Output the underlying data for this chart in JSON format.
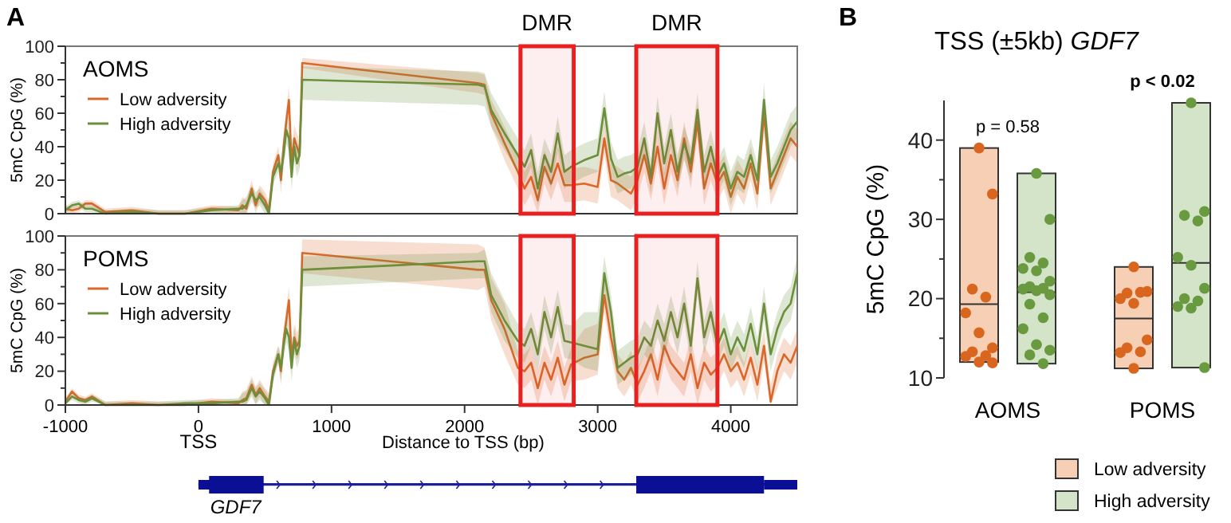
{
  "chart_data": [
    {
      "type": "line",
      "title": "AOMS",
      "ylabel": "5mC CpG (%)",
      "annotations": [
        "A"
      ],
      "legend": "top left",
      "tick_labels": "y",
      "xlim": [
        -1000,
        4500
      ],
      "ylim": [
        0,
        100
      ],
      "yticks": [
        0,
        {
          "value": 10,
          "label": null
        },
        20,
        {
          "value": 30,
          "label": null
        },
        40,
        {
          "value": 50,
          "label": null
        },
        60,
        {
          "value": 70,
          "label": null
        },
        80,
        {
          "value": 90,
          "label": null
        },
        100
      ],
      "bands": [
        {
          "axis": "x",
          "from": 2420,
          "to": 2820,
          "label": "DMR",
          "color": "#e8201f"
        },
        {
          "axis": "x",
          "from": 3290,
          "to": 3900,
          "label": "DMR",
          "color": "#e8201f"
        }
      ],
      "x": [
        -1000,
        -950,
        -900,
        -850,
        -800,
        -700,
        -500,
        -300,
        -100,
        100,
        300,
        330,
        360,
        400,
        430,
        460,
        500,
        530,
        560,
        600,
        620,
        640,
        660,
        680,
        700,
        720,
        740,
        760,
        780,
        2100,
        2150,
        2200,
        2300,
        2400,
        2450,
        2500,
        2550,
        2600,
        2650,
        2700,
        2750,
        2800,
        2900,
        3000,
        3050,
        3100,
        3150,
        3200,
        3250,
        3300,
        3350,
        3400,
        3450,
        3500,
        3550,
        3600,
        3650,
        3700,
        3750,
        3800,
        3850,
        3900,
        3950,
        4000,
        4050,
        4100,
        4150,
        4200,
        4250,
        4300,
        4350,
        4400,
        4450,
        4500
      ],
      "series": [
        {
          "name": "Low adversity",
          "color": "#d9692b",
          "values": [
            3,
            2,
            3,
            6,
            6,
            1,
            2,
            0,
            0,
            3,
            2,
            5,
            3,
            15,
            5,
            12,
            8,
            2,
            25,
            35,
            20,
            40,
            55,
            68,
            30,
            45,
            40,
            35,
            90,
            78,
            77,
            60,
            42,
            25,
            15,
            22,
            8,
            28,
            18,
            30,
            17,
            17,
            18,
            16,
            45,
            20,
            18,
            15,
            12,
            20,
            35,
            18,
            40,
            15,
            35,
            20,
            45,
            25,
            55,
            15,
            30,
            18,
            25,
            10,
            22,
            15,
            30,
            12,
            60,
            15,
            25,
            35,
            45,
            40
          ],
          "lower": [
            1,
            0,
            1,
            4,
            4,
            0,
            0,
            0,
            0,
            1,
            0,
            0,
            0,
            10,
            0,
            7,
            3,
            0,
            20,
            30,
            12,
            32,
            47,
            60,
            22,
            37,
            32,
            27,
            87,
            72,
            71,
            52,
            32,
            15,
            5,
            12,
            0,
            18,
            8,
            20,
            7,
            7,
            8,
            6,
            35,
            10,
            8,
            5,
            2,
            10,
            25,
            8,
            30,
            5,
            25,
            10,
            35,
            15,
            45,
            5,
            20,
            8,
            15,
            0,
            12,
            5,
            20,
            2,
            50,
            5,
            15,
            25,
            35,
            30
          ],
          "upper": [
            5,
            4,
            5,
            8,
            8,
            3,
            4,
            2,
            2,
            5,
            4,
            10,
            8,
            20,
            10,
            17,
            13,
            7,
            30,
            40,
            28,
            48,
            63,
            76,
            38,
            53,
            48,
            43,
            93,
            84,
            83,
            68,
            52,
            35,
            25,
            32,
            18,
            38,
            28,
            40,
            27,
            27,
            28,
            26,
            55,
            30,
            28,
            25,
            22,
            30,
            45,
            28,
            50,
            25,
            45,
            30,
            55,
            35,
            65,
            25,
            40,
            28,
            35,
            20,
            32,
            25,
            40,
            22,
            70,
            25,
            35,
            45,
            55,
            50
          ]
        },
        {
          "name": "High adversity",
          "color": "#6b8f3a",
          "values": [
            2,
            5,
            6,
            3,
            3,
            0,
            1,
            0,
            0,
            2,
            3,
            3,
            5,
            12,
            8,
            10,
            5,
            0,
            22,
            30,
            25,
            35,
            50,
            45,
            22,
            40,
            30,
            35,
            80,
            77,
            76,
            62,
            48,
            35,
            28,
            38,
            15,
            35,
            25,
            48,
            25,
            28,
            32,
            35,
            63,
            33,
            22,
            24,
            25,
            28,
            45,
            22,
            60,
            30,
            50,
            25,
            42,
            30,
            62,
            25,
            40,
            22,
            30,
            15,
            25,
            22,
            35,
            20,
            68,
            22,
            30,
            40,
            50,
            55
          ],
          "lower": [
            0,
            3,
            4,
            1,
            1,
            0,
            0,
            0,
            0,
            0,
            1,
            0,
            0,
            7,
            3,
            5,
            0,
            0,
            17,
            25,
            17,
            27,
            42,
            37,
            14,
            32,
            22,
            27,
            68,
            65,
            64,
            52,
            38,
            25,
            18,
            28,
            5,
            25,
            15,
            38,
            15,
            18,
            22,
            25,
            53,
            23,
            12,
            14,
            15,
            18,
            35,
            12,
            50,
            20,
            40,
            15,
            32,
            20,
            52,
            15,
            30,
            12,
            20,
            5,
            15,
            12,
            25,
            10,
            58,
            12,
            20,
            30,
            40,
            45
          ],
          "upper": [
            4,
            7,
            8,
            5,
            5,
            2,
            3,
            2,
            2,
            4,
            5,
            8,
            10,
            17,
            13,
            15,
            10,
            5,
            27,
            35,
            33,
            43,
            58,
            53,
            30,
            48,
            38,
            43,
            88,
            85,
            84,
            72,
            58,
            45,
            38,
            48,
            25,
            45,
            35,
            58,
            35,
            38,
            42,
            45,
            73,
            43,
            32,
            34,
            35,
            38,
            55,
            32,
            70,
            40,
            60,
            35,
            52,
            40,
            72,
            35,
            50,
            32,
            40,
            25,
            35,
            32,
            45,
            30,
            78,
            32,
            40,
            50,
            60,
            65
          ]
        }
      ]
    },
    {
      "type": "line",
      "title": "POMS",
      "ylabel": "5mC CpG (%)",
      "xlabel": "Distance to TSS (bp)",
      "annotations": [
        "TSS",
        "GDF7"
      ],
      "legend": "top left",
      "xlim": [
        -1000,
        4500
      ],
      "ylim": [
        0,
        100
      ],
      "xticks": [
        -1000,
        0,
        1000,
        2000,
        3000,
        4000
      ],
      "yticks": [
        0,
        {
          "value": 10,
          "label": null
        },
        20,
        {
          "value": 30,
          "label": null
        },
        40,
        {
          "value": 50,
          "label": null
        },
        60,
        {
          "value": 70,
          "label": null
        },
        80,
        {
          "value": 90,
          "label": null
        },
        100
      ],
      "bands": [
        {
          "axis": "x",
          "from": 2420,
          "to": 2820,
          "color": "#e8201f"
        },
        {
          "axis": "x",
          "from": 3290,
          "to": 3900,
          "color": "#e8201f"
        }
      ],
      "x": [
        -1000,
        -950,
        -900,
        -850,
        -800,
        -700,
        -500,
        -300,
        -100,
        100,
        300,
        330,
        360,
        400,
        430,
        460,
        500,
        530,
        560,
        600,
        620,
        640,
        660,
        680,
        700,
        720,
        740,
        760,
        780,
        2100,
        2150,
        2200,
        2300,
        2400,
        2450,
        2500,
        2550,
        2600,
        2650,
        2700,
        2750,
        2800,
        2900,
        3000,
        3050,
        3100,
        3150,
        3200,
        3250,
        3300,
        3350,
        3400,
        3450,
        3500,
        3550,
        3600,
        3650,
        3700,
        3750,
        3800,
        3850,
        3900,
        3950,
        4000,
        4050,
        4100,
        4150,
        4200,
        4250,
        4300,
        4350,
        4400,
        4450,
        4500
      ],
      "series": [
        {
          "name": "Low adversity",
          "color": "#d9692b",
          "values": [
            2,
            8,
            4,
            3,
            5,
            0,
            1,
            0,
            0,
            2,
            1,
            3,
            4,
            12,
            6,
            10,
            5,
            2,
            20,
            30,
            20,
            38,
            50,
            62,
            28,
            40,
            35,
            38,
            90,
            80,
            80,
            62,
            45,
            22,
            20,
            25,
            10,
            25,
            15,
            28,
            12,
            24,
            28,
            30,
            65,
            40,
            20,
            15,
            22,
            12,
            20,
            30,
            15,
            35,
            25,
            20,
            15,
            30,
            10,
            25,
            18,
            22,
            30,
            20,
            25,
            15,
            28,
            12,
            35,
            2,
            20,
            30,
            25,
            35
          ],
          "lower": [
            0,
            6,
            2,
            1,
            3,
            0,
            0,
            0,
            0,
            0,
            0,
            0,
            0,
            7,
            1,
            5,
            0,
            0,
            15,
            25,
            12,
            30,
            42,
            54,
            20,
            32,
            27,
            30,
            78,
            68,
            70,
            50,
            30,
            12,
            10,
            15,
            0,
            15,
            5,
            18,
            2,
            14,
            15,
            18,
            55,
            30,
            10,
            5,
            12,
            2,
            10,
            20,
            5,
            25,
            15,
            10,
            5,
            20,
            0,
            15,
            8,
            12,
            20,
            10,
            15,
            5,
            18,
            2,
            25,
            0,
            10,
            20,
            15,
            25
          ],
          "upper": [
            4,
            10,
            6,
            5,
            7,
            2,
            3,
            2,
            2,
            4,
            3,
            8,
            9,
            17,
            11,
            15,
            10,
            7,
            25,
            35,
            28,
            46,
            58,
            70,
            36,
            48,
            43,
            46,
            98,
            95,
            93,
            75,
            60,
            32,
            30,
            35,
            20,
            35,
            25,
            38,
            22,
            34,
            45,
            48,
            75,
            50,
            30,
            25,
            32,
            22,
            30,
            40,
            25,
            45,
            35,
            30,
            25,
            40,
            20,
            35,
            28,
            32,
            40,
            30,
            35,
            25,
            38,
            22,
            45,
            12,
            30,
            40,
            35,
            45
          ]
        },
        {
          "name": "High adversity",
          "color": "#6b8f3a",
          "values": [
            1,
            5,
            3,
            2,
            4,
            0,
            0,
            0,
            1,
            1,
            2,
            2,
            3,
            10,
            5,
            8,
            4,
            0,
            18,
            30,
            22,
            35,
            45,
            40,
            22,
            38,
            30,
            35,
            80,
            85,
            85,
            65,
            50,
            38,
            35,
            45,
            30,
            55,
            40,
            58,
            38,
            37,
            35,
            33,
            78,
            55,
            22,
            25,
            28,
            30,
            40,
            35,
            50,
            38,
            55,
            40,
            60,
            35,
            75,
            40,
            55,
            35,
            45,
            30,
            40,
            32,
            48,
            30,
            60,
            30,
            45,
            55,
            60,
            78
          ],
          "lower": [
            0,
            3,
            1,
            0,
            2,
            0,
            0,
            0,
            0,
            0,
            0,
            0,
            0,
            5,
            0,
            3,
            0,
            0,
            13,
            25,
            14,
            27,
            37,
            32,
            14,
            30,
            22,
            27,
            70,
            75,
            75,
            55,
            38,
            28,
            25,
            35,
            20,
            45,
            30,
            48,
            28,
            27,
            22,
            20,
            68,
            45,
            12,
            15,
            18,
            20,
            30,
            25,
            40,
            28,
            45,
            30,
            50,
            25,
            65,
            30,
            45,
            25,
            35,
            20,
            30,
            22,
            38,
            20,
            50,
            20,
            35,
            45,
            50,
            68
          ],
          "upper": [
            3,
            7,
            5,
            4,
            6,
            2,
            2,
            2,
            3,
            3,
            4,
            7,
            8,
            15,
            10,
            13,
            9,
            5,
            23,
            35,
            30,
            43,
            53,
            48,
            30,
            46,
            38,
            43,
            88,
            90,
            92,
            78,
            62,
            48,
            45,
            55,
            40,
            65,
            50,
            68,
            48,
            47,
            55,
            55,
            88,
            65,
            32,
            35,
            38,
            40,
            50,
            45,
            60,
            48,
            65,
            50,
            70,
            45,
            85,
            50,
            65,
            45,
            55,
            40,
            50,
            42,
            58,
            40,
            70,
            40,
            55,
            65,
            70,
            88
          ]
        }
      ]
    },
    {
      "type": "box",
      "title": "TSS (±5kb) GDF7",
      "ylabel": "5mC CpG (%)",
      "annotations": [
        "B",
        "p = 0.58",
        "p < 0.02"
      ],
      "legend": "bottom right",
      "categories": [
        "AOMS",
        "POMS"
      ],
      "ylim": [
        10,
        45
      ],
      "yticks": [
        10,
        {
          "value": 15,
          "label": null
        },
        20,
        {
          "value": 25,
          "label": null
        },
        30,
        {
          "value": 35,
          "label": null
        },
        40
      ],
      "series": [
        {
          "name": "Low adversity",
          "type": "box",
          "color": "#f6cfb5",
          "boxes": [
            {
              "low": 12,
              "q1": 12,
              "median": 19.3,
              "q3": 39,
              "high": 39
            },
            {
              "low": 11.2,
              "q1": 11.2,
              "median": 17.5,
              "q3": 24,
              "high": 24
            }
          ]
        },
        {
          "name": "High adversity",
          "type": "box",
          "color": "#d3e4c8",
          "boxes": [
            {
              "low": 11.8,
              "q1": 11.8,
              "median": 20.8,
              "q3": 35.8,
              "high": 35.8
            },
            {
              "low": 11.3,
              "q1": 11.3,
              "median": 24.5,
              "q3": 44.7,
              "high": 44.7
            }
          ]
        },
        {
          "type": "scatter",
          "color": "#d9661f",
          "x": [
            "AOMS",
            "AOMS",
            "AOMS",
            "AOMS",
            "AOMS",
            "AOMS",
            "AOMS",
            "AOMS",
            "AOMS",
            "AOMS",
            "AOMS",
            "AOMS",
            "POMS",
            "POMS",
            "POMS",
            "POMS",
            "POMS",
            "POMS",
            "POMS",
            "POMS",
            "POMS",
            "POMS",
            "POMS"
          ],
          "values": [
            39,
            33.2,
            21.2,
            20.2,
            18.2,
            15.7,
            13.8,
            13.3,
            12.8,
            12.7,
            12,
            11.9,
            24,
            20.9,
            20.7,
            20.8,
            20,
            19.4,
            14.8,
            13.8,
            13.3,
            13.2,
            11.2
          ]
        },
        {
          "type": "scatter",
          "color": "#6a9a3f",
          "x": [
            "AOMS",
            "AOMS",
            "AOMS",
            "AOMS",
            "AOMS",
            "AOMS",
            "AOMS",
            "AOMS",
            "AOMS",
            "AOMS",
            "AOMS",
            "AOMS",
            "AOMS",
            "AOMS",
            "AOMS",
            "AOMS",
            "AOMS",
            "AOMS",
            "AOMS",
            "POMS",
            "POMS",
            "POMS",
            "POMS",
            "POMS",
            "POMS",
            "POMS",
            "POMS",
            "POMS",
            "POMS",
            "POMS",
            "POMS"
          ],
          "values": [
            35.8,
            30,
            25.2,
            24.5,
            23.8,
            23.5,
            22.2,
            21.5,
            21.3,
            21.2,
            21,
            20.5,
            19.3,
            17.6,
            16.2,
            14.2,
            13.5,
            12.9,
            11.8,
            44.7,
            31,
            30.5,
            29.8,
            25.2,
            24.2,
            21.3,
            20,
            19.7,
            19,
            18.8,
            11.3
          ]
        }
      ]
    }
  ]
}
